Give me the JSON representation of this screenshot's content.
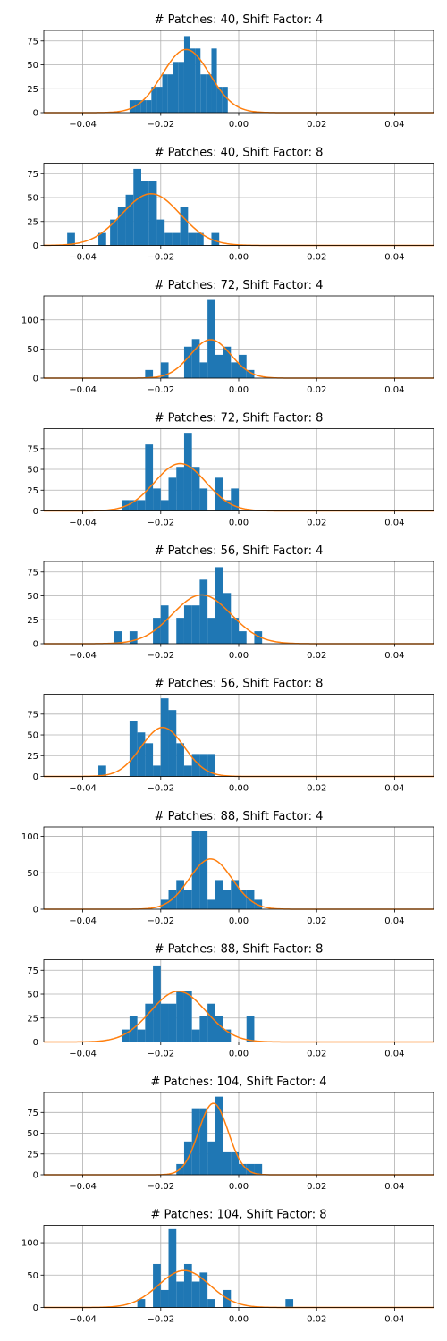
{
  "chart_data": [
    {
      "type": "bar",
      "title": "# Patches: 40, Shift Factor: 4",
      "xlim": [
        -0.05,
        0.05
      ],
      "ylim": [
        0,
        86
      ],
      "xticks": [
        -0.04,
        -0.02,
        0.0,
        0.02,
        0.04
      ],
      "xtick_labels": [
        "−0.04",
        "−0.02",
        "0.00",
        "0.02",
        "0.04"
      ],
      "yticks": [
        0,
        25,
        50,
        75
      ],
      "ytick_labels": [
        "0",
        "25",
        "50",
        "75"
      ],
      "grid": true,
      "bin_width": 0.0014,
      "bins": [
        {
          "x": -0.0273,
          "y": 13
        },
        {
          "x": -0.0259,
          "y": 13
        },
        {
          "x": -0.0245,
          "y": 13
        },
        {
          "x": -0.0231,
          "y": 13
        },
        {
          "x": -0.0217,
          "y": 27
        },
        {
          "x": -0.0203,
          "y": 27
        },
        {
          "x": -0.0189,
          "y": 40
        },
        {
          "x": -0.0175,
          "y": 40
        },
        {
          "x": -0.0161,
          "y": 53
        },
        {
          "x": -0.0147,
          "y": 53
        },
        {
          "x": -0.0133,
          "y": 80
        },
        {
          "x": -0.0119,
          "y": 67
        },
        {
          "x": -0.0105,
          "y": 67
        },
        {
          "x": -0.0091,
          "y": 40
        },
        {
          "x": -0.0077,
          "y": 40
        },
        {
          "x": -0.0063,
          "y": 67
        },
        {
          "x": -0.0049,
          "y": 27
        },
        {
          "x": -0.0035,
          "y": 27
        }
      ],
      "fit": {
        "mean": -0.0135,
        "std": 0.0061,
        "peak": 66
      }
    },
    {
      "type": "bar",
      "title": "# Patches: 40, Shift Factor: 8",
      "xlim": [
        -0.05,
        0.05
      ],
      "ylim": [
        0,
        86
      ],
      "xticks": [
        -0.04,
        -0.02,
        0.0,
        0.02,
        0.04
      ],
      "xtick_labels": [
        "−0.04",
        "−0.02",
        "0.00",
        "0.02",
        "0.04"
      ],
      "yticks": [
        0,
        25,
        50,
        75
      ],
      "ytick_labels": [
        "0",
        "25",
        "50",
        "75"
      ],
      "grid": true,
      "bin_width": 0.002,
      "bins": [
        {
          "x": -0.043,
          "y": 13
        },
        {
          "x": -0.035,
          "y": 13
        },
        {
          "x": -0.032,
          "y": 27
        },
        {
          "x": -0.03,
          "y": 40
        },
        {
          "x": -0.028,
          "y": 53
        },
        {
          "x": -0.026,
          "y": 80
        },
        {
          "x": -0.024,
          "y": 67
        },
        {
          "x": -0.022,
          "y": 67
        },
        {
          "x": -0.02,
          "y": 27
        },
        {
          "x": -0.018,
          "y": 13
        },
        {
          "x": -0.016,
          "y": 13
        },
        {
          "x": -0.014,
          "y": 40
        },
        {
          "x": -0.012,
          "y": 13
        },
        {
          "x": -0.01,
          "y": 13
        },
        {
          "x": -0.006,
          "y": 13
        }
      ],
      "fit": {
        "mean": -0.0225,
        "std": 0.0075,
        "peak": 54
      }
    },
    {
      "type": "bar",
      "title": "# Patches: 72, Shift Factor: 4",
      "xlim": [
        -0.05,
        0.05
      ],
      "ylim": [
        0,
        141
      ],
      "xticks": [
        -0.04,
        -0.02,
        0.0,
        0.02,
        0.04
      ],
      "xtick_labels": [
        "−0.04",
        "−0.02",
        "0.00",
        "0.02",
        "0.04"
      ],
      "yticks": [
        0,
        50,
        100
      ],
      "ytick_labels": [
        "0",
        "50",
        "100"
      ],
      "grid": true,
      "bin_width": 0.002,
      "bins": [
        {
          "x": -0.023,
          "y": 14
        },
        {
          "x": -0.019,
          "y": 27
        },
        {
          "x": -0.013,
          "y": 54
        },
        {
          "x": -0.011,
          "y": 67
        },
        {
          "x": -0.009,
          "y": 27
        },
        {
          "x": -0.007,
          "y": 134
        },
        {
          "x": -0.005,
          "y": 40
        },
        {
          "x": -0.003,
          "y": 54
        },
        {
          "x": -0.001,
          "y": 27
        },
        {
          "x": 0.001,
          "y": 40
        },
        {
          "x": 0.003,
          "y": 14
        }
      ],
      "fit": {
        "mean": -0.0072,
        "std": 0.0052,
        "peak": 66
      }
    },
    {
      "type": "bar",
      "title": "# Patches: 72, Shift Factor: 8",
      "xlim": [
        -0.05,
        0.05
      ],
      "ylim": [
        0,
        99
      ],
      "xticks": [
        -0.04,
        -0.02,
        0.0,
        0.02,
        0.04
      ],
      "xtick_labels": [
        "−0.04",
        "−0.02",
        "0.00",
        "0.02",
        "0.04"
      ],
      "yticks": [
        0,
        25,
        50,
        75
      ],
      "ytick_labels": [
        "0",
        "25",
        "50",
        "75"
      ],
      "grid": true,
      "bin_width": 0.002,
      "bins": [
        {
          "x": -0.029,
          "y": 13
        },
        {
          "x": -0.027,
          "y": 13
        },
        {
          "x": -0.025,
          "y": 13
        },
        {
          "x": -0.023,
          "y": 80
        },
        {
          "x": -0.021,
          "y": 27
        },
        {
          "x": -0.019,
          "y": 13
        },
        {
          "x": -0.017,
          "y": 40
        },
        {
          "x": -0.015,
          "y": 53
        },
        {
          "x": -0.013,
          "y": 94
        },
        {
          "x": -0.011,
          "y": 53
        },
        {
          "x": -0.009,
          "y": 27
        },
        {
          "x": -0.005,
          "y": 40
        },
        {
          "x": -0.003,
          "y": 13
        },
        {
          "x": -0.001,
          "y": 27
        }
      ],
      "fit": {
        "mean": -0.015,
        "std": 0.0066,
        "peak": 57
      }
    },
    {
      "type": "bar",
      "title": "# Patches: 56, Shift Factor: 4",
      "xlim": [
        -0.05,
        0.05
      ],
      "ylim": [
        0,
        86
      ],
      "xticks": [
        -0.04,
        -0.02,
        0.0,
        0.02,
        0.04
      ],
      "xtick_labels": [
        "−0.04",
        "−0.02",
        "0.00",
        "0.02",
        "0.04"
      ],
      "yticks": [
        0,
        25,
        50,
        75
      ],
      "ytick_labels": [
        "0",
        "25",
        "50",
        "75"
      ],
      "grid": true,
      "bin_width": 0.002,
      "bins": [
        {
          "x": -0.031,
          "y": 13
        },
        {
          "x": -0.027,
          "y": 13
        },
        {
          "x": -0.021,
          "y": 27
        },
        {
          "x": -0.019,
          "y": 40
        },
        {
          "x": -0.015,
          "y": 27
        },
        {
          "x": -0.013,
          "y": 40
        },
        {
          "x": -0.011,
          "y": 40
        },
        {
          "x": -0.009,
          "y": 67
        },
        {
          "x": -0.007,
          "y": 27
        },
        {
          "x": -0.005,
          "y": 80
        },
        {
          "x": -0.003,
          "y": 53
        },
        {
          "x": -0.001,
          "y": 27
        },
        {
          "x": 0.001,
          "y": 13
        },
        {
          "x": 0.005,
          "y": 13
        }
      ],
      "fit": {
        "mean": -0.0095,
        "std": 0.0075,
        "peak": 51
      }
    },
    {
      "type": "bar",
      "title": "# Patches: 56, Shift Factor: 8",
      "xlim": [
        -0.05,
        0.05
      ],
      "ylim": [
        0,
        99
      ],
      "xticks": [
        -0.04,
        -0.02,
        0.0,
        0.02,
        0.04
      ],
      "xtick_labels": [
        "−0.04",
        "−0.02",
        "0.00",
        "0.02",
        "0.04"
      ],
      "yticks": [
        0,
        25,
        50,
        75
      ],
      "ytick_labels": [
        "0",
        "25",
        "50",
        "75"
      ],
      "grid": true,
      "bin_width": 0.002,
      "bins": [
        {
          "x": -0.035,
          "y": 13
        },
        {
          "x": -0.027,
          "y": 67
        },
        {
          "x": -0.025,
          "y": 53
        },
        {
          "x": -0.023,
          "y": 40
        },
        {
          "x": -0.021,
          "y": 13
        },
        {
          "x": -0.019,
          "y": 94
        },
        {
          "x": -0.017,
          "y": 80
        },
        {
          "x": -0.015,
          "y": 40
        },
        {
          "x": -0.013,
          "y": 13
        },
        {
          "x": -0.011,
          "y": 27
        },
        {
          "x": -0.009,
          "y": 27
        },
        {
          "x": -0.007,
          "y": 27
        }
      ],
      "fit": {
        "mean": -0.0195,
        "std": 0.0055,
        "peak": 59
      }
    },
    {
      "type": "bar",
      "title": "# Patches: 88, Shift Factor: 4",
      "xlim": [
        -0.05,
        0.05
      ],
      "ylim": [
        0,
        113
      ],
      "xticks": [
        -0.04,
        -0.02,
        0.0,
        0.02,
        0.04
      ],
      "xtick_labels": [
        "−0.04",
        "−0.02",
        "0.00",
        "0.02",
        "0.04"
      ],
      "yticks": [
        0,
        50,
        100
      ],
      "ytick_labels": [
        "0",
        "50",
        "100"
      ],
      "grid": true,
      "bin_width": 0.002,
      "bins": [
        {
          "x": -0.019,
          "y": 13
        },
        {
          "x": -0.017,
          "y": 27
        },
        {
          "x": -0.015,
          "y": 40
        },
        {
          "x": -0.013,
          "y": 27
        },
        {
          "x": -0.011,
          "y": 107
        },
        {
          "x": -0.009,
          "y": 107
        },
        {
          "x": -0.007,
          "y": 13
        },
        {
          "x": -0.005,
          "y": 40
        },
        {
          "x": -0.003,
          "y": 27
        },
        {
          "x": -0.001,
          "y": 40
        },
        {
          "x": 0.001,
          "y": 27
        },
        {
          "x": 0.003,
          "y": 27
        },
        {
          "x": 0.005,
          "y": 13
        }
      ],
      "fit": {
        "mean": -0.0072,
        "std": 0.0055,
        "peak": 69
      }
    },
    {
      "type": "bar",
      "title": "# Patches: 88, Shift Factor: 8",
      "xlim": [
        -0.05,
        0.05
      ],
      "ylim": [
        0,
        86
      ],
      "xticks": [
        -0.04,
        -0.02,
        0.0,
        0.02,
        0.04
      ],
      "xtick_labels": [
        "−0.04",
        "−0.02",
        "0.00",
        "0.02",
        "0.04"
      ],
      "yticks": [
        0,
        25,
        50,
        75
      ],
      "ytick_labels": [
        "0",
        "25",
        "50",
        "75"
      ],
      "grid": true,
      "bin_width": 0.002,
      "bins": [
        {
          "x": -0.029,
          "y": 13
        },
        {
          "x": -0.027,
          "y": 27
        },
        {
          "x": -0.025,
          "y": 13
        },
        {
          "x": -0.023,
          "y": 40
        },
        {
          "x": -0.021,
          "y": 80
        },
        {
          "x": -0.019,
          "y": 40
        },
        {
          "x": -0.017,
          "y": 40
        },
        {
          "x": -0.015,
          "y": 53
        },
        {
          "x": -0.013,
          "y": 53
        },
        {
          "x": -0.011,
          "y": 13
        },
        {
          "x": -0.009,
          "y": 27
        },
        {
          "x": -0.007,
          "y": 40
        },
        {
          "x": -0.005,
          "y": 27
        },
        {
          "x": -0.003,
          "y": 13
        },
        {
          "x": 0.003,
          "y": 27
        }
      ],
      "fit": {
        "mean": -0.0155,
        "std": 0.0071,
        "peak": 53
      }
    },
    {
      "type": "bar",
      "title": "# Patches: 104, Shift Factor: 4",
      "xlim": [
        -0.05,
        0.05
      ],
      "ylim": [
        0,
        99
      ],
      "xticks": [
        -0.04,
        -0.02,
        0.0,
        0.02,
        0.04
      ],
      "xtick_labels": [
        "−0.04",
        "−0.02",
        "0.00",
        "0.02",
        "0.04"
      ],
      "yticks": [
        0,
        25,
        50,
        75
      ],
      "ytick_labels": [
        "0",
        "25",
        "50",
        "75"
      ],
      "grid": true,
      "bin_width": 0.002,
      "bins": [
        {
          "x": -0.015,
          "y": 13
        },
        {
          "x": -0.013,
          "y": 40
        },
        {
          "x": -0.011,
          "y": 80
        },
        {
          "x": -0.009,
          "y": 80
        },
        {
          "x": -0.007,
          "y": 40
        },
        {
          "x": -0.005,
          "y": 94
        },
        {
          "x": -0.003,
          "y": 27
        },
        {
          "x": -0.001,
          "y": 27
        },
        {
          "x": 0.001,
          "y": 13
        },
        {
          "x": 0.003,
          "y": 13
        },
        {
          "x": 0.005,
          "y": 13
        }
      ],
      "fit": {
        "mean": -0.0065,
        "std": 0.0038,
        "peak": 86
      }
    },
    {
      "type": "bar",
      "title": "# Patches: 104, Shift Factor: 8",
      "xlim": [
        -0.05,
        0.05
      ],
      "ylim": [
        0,
        127
      ],
      "xticks": [
        -0.04,
        -0.02,
        0.0,
        0.02,
        0.04
      ],
      "xtick_labels": [
        "−0.04",
        "−0.02",
        "0.00",
        "0.02",
        "0.04"
      ],
      "yticks": [
        0,
        50,
        100
      ],
      "ytick_labels": [
        "0",
        "50",
        "100"
      ],
      "grid": true,
      "bin_width": 0.002,
      "bins": [
        {
          "x": -0.025,
          "y": 13
        },
        {
          "x": -0.021,
          "y": 67
        },
        {
          "x": -0.019,
          "y": 27
        },
        {
          "x": -0.017,
          "y": 121
        },
        {
          "x": -0.015,
          "y": 40
        },
        {
          "x": -0.013,
          "y": 67
        },
        {
          "x": -0.011,
          "y": 40
        },
        {
          "x": -0.009,
          "y": 54
        },
        {
          "x": -0.007,
          "y": 13
        },
        {
          "x": -0.003,
          "y": 27
        },
        {
          "x": 0.013,
          "y": 13
        }
      ],
      "fit": {
        "mean": -0.014,
        "std": 0.0066,
        "peak": 57
      }
    }
  ]
}
